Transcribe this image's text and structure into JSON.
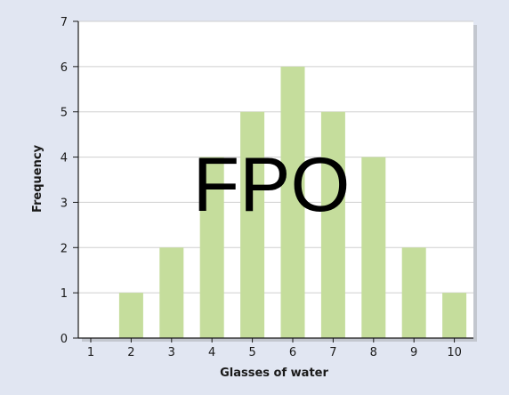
{
  "chart_data": {
    "type": "bar",
    "categories": [
      "1",
      "2",
      "3",
      "4",
      "5",
      "6",
      "7",
      "8",
      "9",
      "10"
    ],
    "values": [
      0,
      1,
      2,
      4,
      5,
      6,
      5,
      4,
      2,
      1
    ],
    "title": "",
    "xlabel": "Glasses of water",
    "ylabel": "Frequency",
    "ylim": [
      0,
      7
    ],
    "yticks": [
      "0",
      "1",
      "2",
      "3",
      "4",
      "5",
      "6",
      "7"
    ],
    "grid": true,
    "legend": "none"
  },
  "watermark": "FPO",
  "colors": {
    "background": "#e1e6f2",
    "plot_area": "#ffffff",
    "bar": "#c5dd9c",
    "grid": "#cfcfcf",
    "axis": "#1a1a1a"
  }
}
